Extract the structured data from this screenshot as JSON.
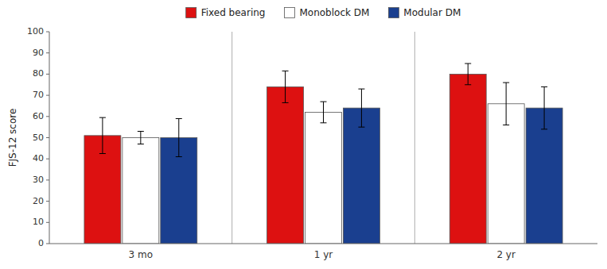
{
  "chart_data": {
    "type": "bar",
    "categories": [
      "3 mo",
      "1 yr",
      "2 yr"
    ],
    "y_label": "FJS-12 score",
    "series": [
      {
        "name": "Fixed bearing",
        "color": "#dd1111",
        "values": [
          51,
          74,
          80
        ],
        "errors": [
          8.5,
          7.5,
          5.0
        ]
      },
      {
        "name": "Monoblock DM",
        "color": "#ffffff",
        "values": [
          50,
          62,
          66
        ],
        "errors": [
          3.0,
          5.0,
          10.0
        ]
      },
      {
        "name": "Modular DM",
        "color": "#1a3f8f",
        "values": [
          50,
          64,
          64
        ],
        "errors": [
          9.0,
          9.0,
          10.0
        ]
      }
    ],
    "ylim": [
      0,
      100
    ],
    "yticks": [
      0,
      10,
      20,
      30,
      40,
      50,
      60,
      70,
      80,
      90,
      100
    ],
    "grid": false,
    "legend": "top"
  }
}
